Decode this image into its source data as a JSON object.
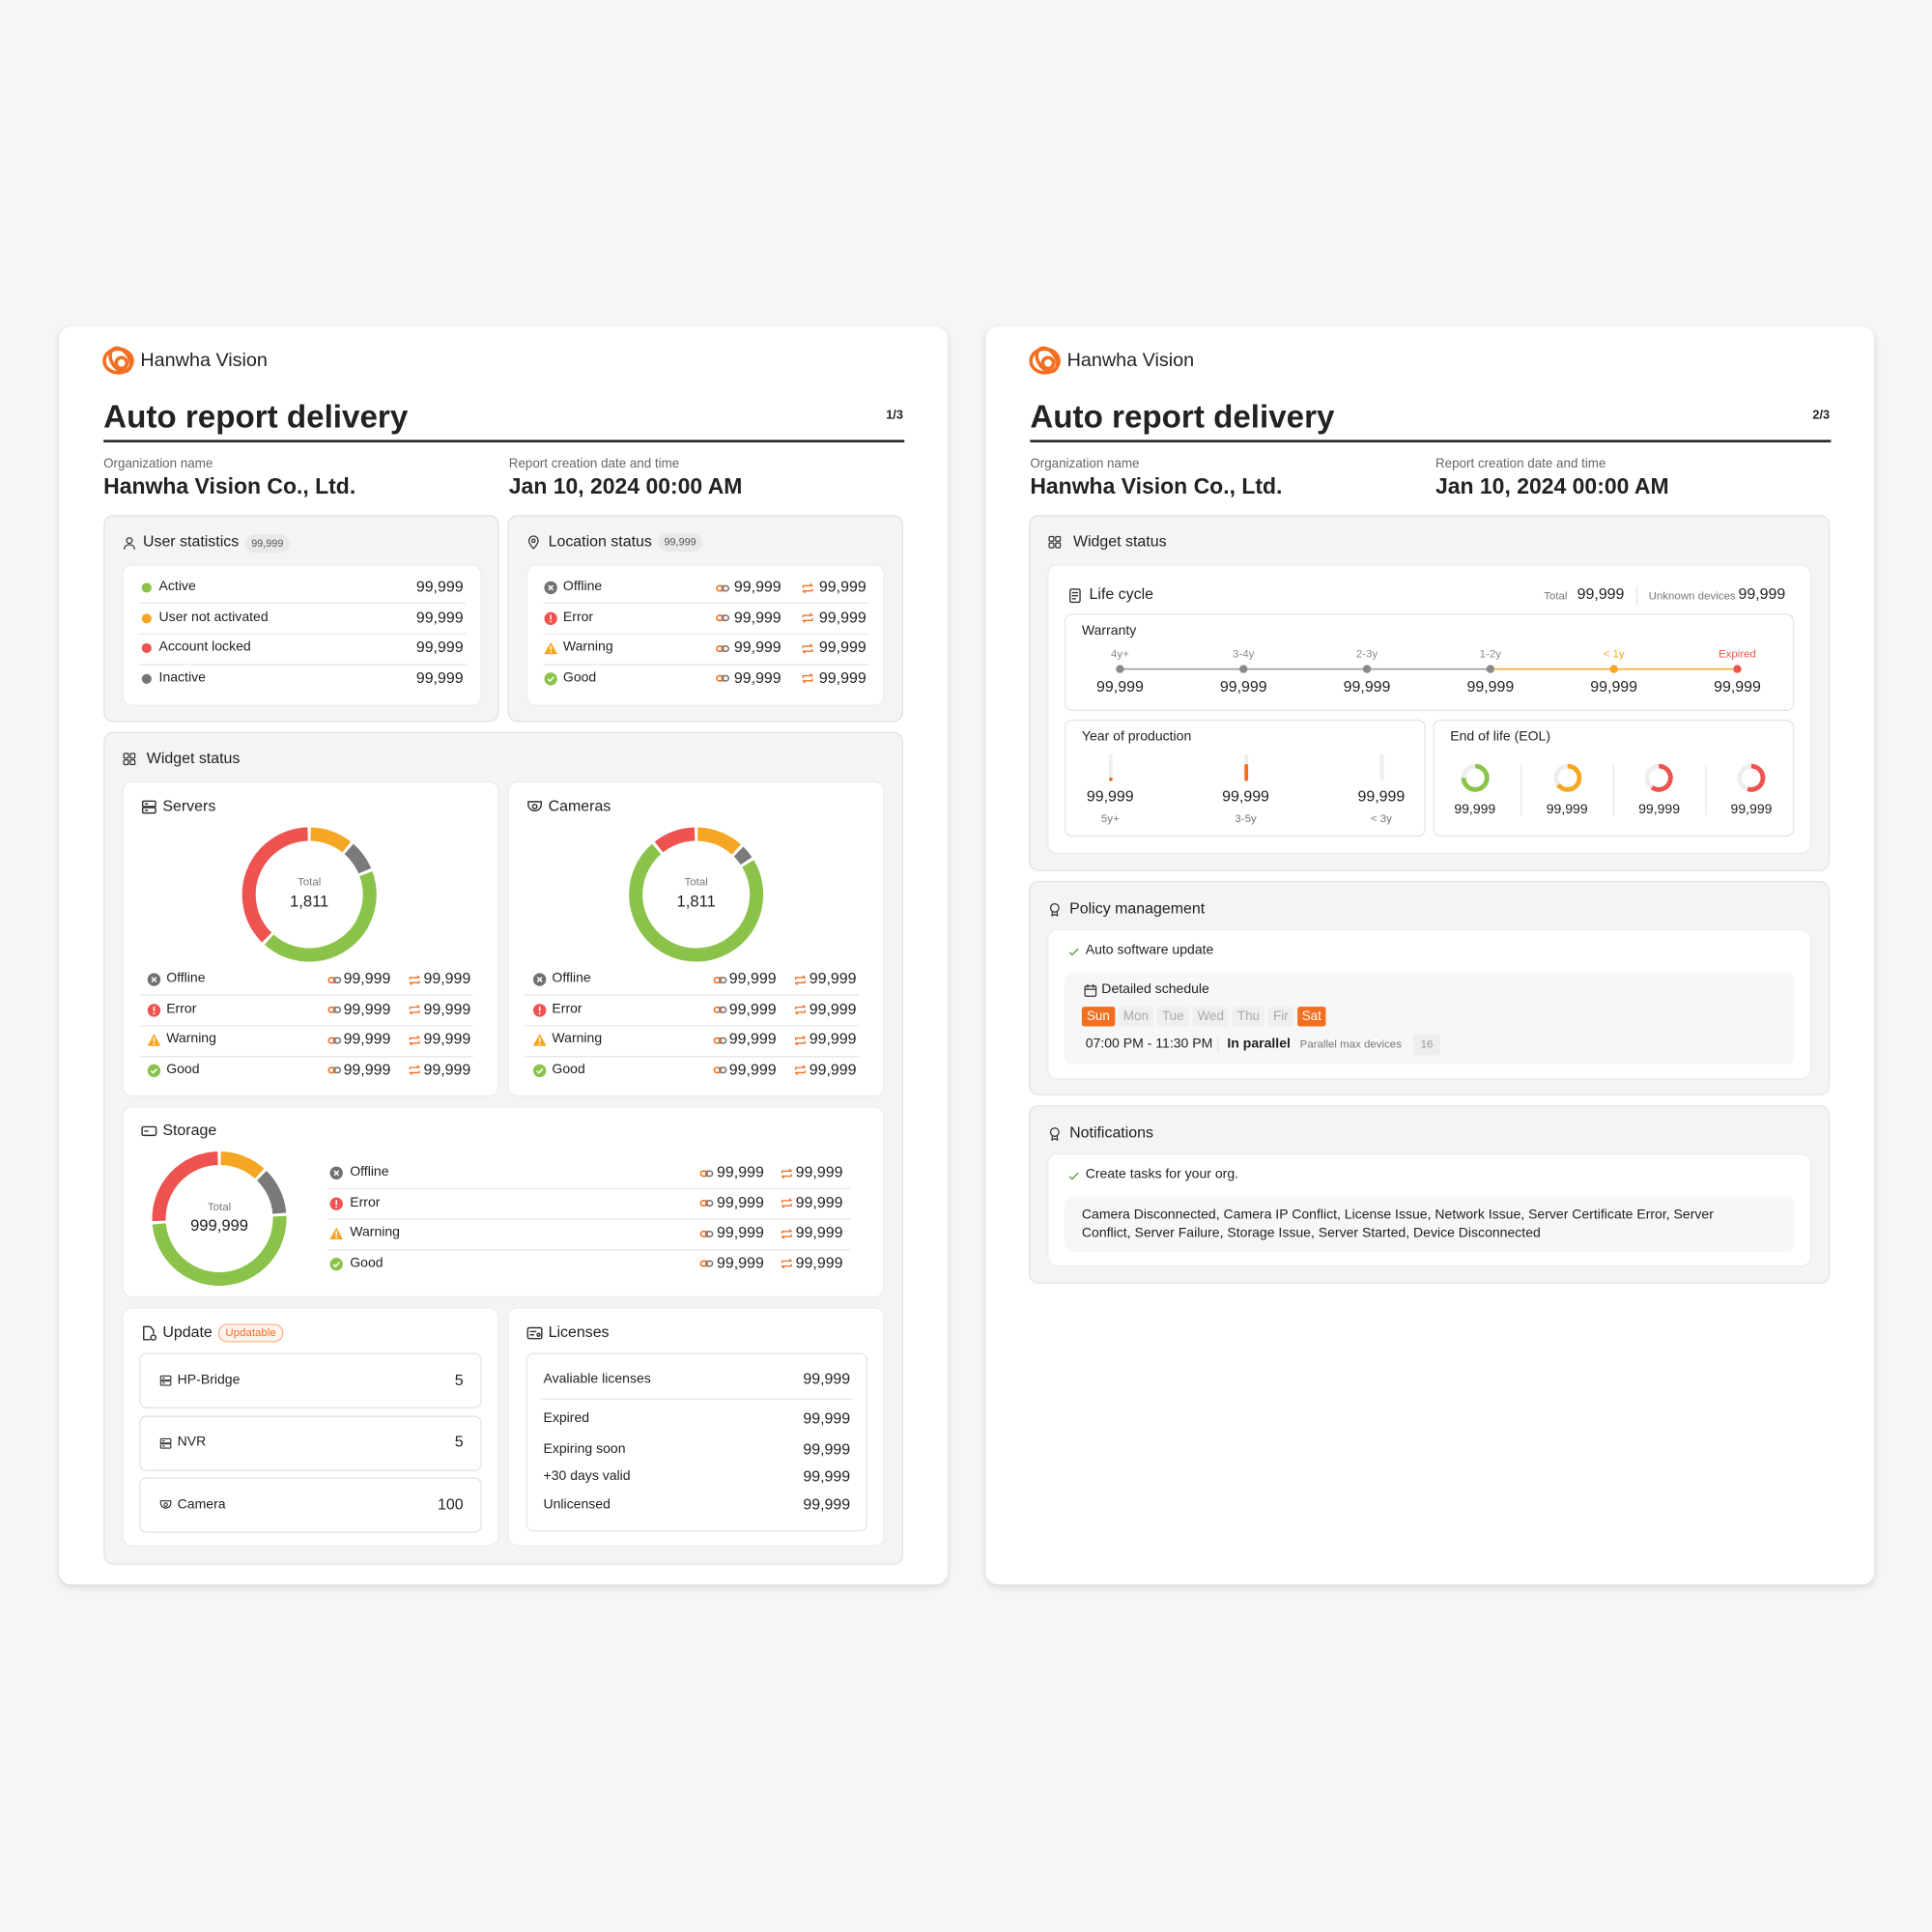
{
  "pages": [
    {
      "brand": "Hanwha Vision",
      "title": "Auto report delivery",
      "page_number": "1/3",
      "org_label": "Organization name",
      "org_name": "Hanwha Vision Co., Ltd.",
      "date_label": "Report creation date and time",
      "date": "Jan 10, 2024 00:00 AM"
    },
    {
      "brand": "Hanwha Vision",
      "title": "Auto report delivery",
      "page_number": "2/3",
      "org_label": "Organization name",
      "org_name": "Hanwha Vision Co., Ltd.",
      "date_label": "Report creation date and time",
      "date": "Jan 10, 2024 00:00 AM"
    }
  ],
  "user_statistics": {
    "title": "User statistics",
    "badge": "99,999",
    "rows": [
      {
        "label": "Active",
        "value": "99,999",
        "color": "#8bc34a"
      },
      {
        "label": "User not activated",
        "value": "99,999",
        "color": "#f5a623"
      },
      {
        "label": "Account locked",
        "value": "99,999",
        "color": "#ef5350"
      },
      {
        "label": "Inactive",
        "value": "99,999",
        "color": "#757575"
      }
    ]
  },
  "location_status": {
    "title": "Location status",
    "badge": "99,999",
    "rows": [
      {
        "label": "Offline",
        "connected": "99,999",
        "synced": "99,999"
      },
      {
        "label": "Error",
        "connected": "99,999",
        "synced": "99,999"
      },
      {
        "label": "Warning",
        "connected": "99,999",
        "synced": "99,999"
      },
      {
        "label": "Good",
        "connected": "99,999",
        "synced": "99,999"
      }
    ]
  },
  "widget_status": {
    "title": "Widget status",
    "servers": {
      "title": "Servers",
      "total_label": "Total",
      "total": "1,811",
      "donut": {
        "values": [
          11,
          8,
          43,
          38
        ],
        "colors": [
          "#f5a623",
          "#7a7a7a",
          "#8bc34a",
          "#ef5350"
        ]
      },
      "rows": [
        {
          "label": "Offline",
          "connected": "99,999",
          "synced": "99,999"
        },
        {
          "label": "Error",
          "connected": "99,999",
          "synced": "99,999"
        },
        {
          "label": "Warning",
          "connected": "99,999",
          "synced": "99,999"
        },
        {
          "label": "Good",
          "connected": "99,999",
          "synced": "99,999"
        }
      ]
    },
    "cameras": {
      "title": "Cameras",
      "total_label": "Total",
      "total": "1,811",
      "donut": {
        "values": [
          12,
          4,
          73,
          11
        ],
        "colors": [
          "#f5a623",
          "#7a7a7a",
          "#8bc34a",
          "#ef5350"
        ]
      },
      "rows": [
        {
          "label": "Offline",
          "connected": "99,999",
          "synced": "99,999"
        },
        {
          "label": "Error",
          "connected": "99,999",
          "synced": "99,999"
        },
        {
          "label": "Warning",
          "connected": "99,999",
          "synced": "99,999"
        },
        {
          "label": "Good",
          "connected": "99,999",
          "synced": "99,999"
        }
      ]
    },
    "storage": {
      "title": "Storage",
      "total_label": "Total",
      "total": "999,999",
      "donut": {
        "values": [
          12,
          12,
          50,
          26
        ],
        "colors": [
          "#f5a623",
          "#7a7a7a",
          "#8bc34a",
          "#ef5350"
        ]
      },
      "rows": [
        {
          "label": "Offline",
          "connected": "99,999",
          "synced": "99,999"
        },
        {
          "label": "Error",
          "connected": "99,999",
          "synced": "99,999"
        },
        {
          "label": "Warning",
          "connected": "99,999",
          "synced": "99,999"
        },
        {
          "label": "Good",
          "connected": "99,999",
          "synced": "99,999"
        }
      ]
    },
    "update": {
      "title": "Update",
      "badge": "Updatable",
      "items": [
        {
          "label": "HP-Bridge",
          "value": 5
        },
        {
          "label": "NVR",
          "value": 5
        },
        {
          "label": "Camera",
          "value": 100
        }
      ]
    },
    "licenses": {
      "title": "Licenses",
      "rows": [
        {
          "label": "Avaliable licenses",
          "value": "99,999"
        },
        {
          "label": "Expired",
          "value": "99,999"
        },
        {
          "label": "Expiring soon",
          "value": "99,999"
        },
        {
          "label": "+30 days valid",
          "value": "99,999"
        },
        {
          "label": "Unlicensed",
          "value": "99,999"
        }
      ]
    }
  },
  "widget_status_2": {
    "title": "Widget status",
    "life_cycle": {
      "title": "Life cycle",
      "total_label": "Total",
      "total": "99,999",
      "unknown_label": "Unknown devices",
      "unknown": "99,999",
      "warranty": {
        "title": "Warranty",
        "points": [
          {
            "label": "4y+",
            "value": "99,999",
            "color": "#8a8a8a"
          },
          {
            "label": "3-4y",
            "value": "99,999",
            "color": "#8a8a8a"
          },
          {
            "label": "2-3y",
            "value": "99,999",
            "color": "#8a8a8a"
          },
          {
            "label": "1-2y",
            "value": "99,999",
            "color": "#8a8a8a"
          },
          {
            "label": "< 1y",
            "value": "99,999",
            "color": "#f5a623"
          },
          {
            "label": "Expired",
            "value": "99,999",
            "color": "#ef5350"
          }
        ]
      },
      "production": {
        "title": "Year of production",
        "color": "#f26f21",
        "items": [
          {
            "value": "99,999",
            "label": "5y+",
            "fill": 15
          },
          {
            "value": "99,999",
            "label": "3-5y",
            "fill": 65
          },
          {
            "value": "99,999",
            "label": "< 3y",
            "fill": 0
          }
        ]
      },
      "eol": {
        "title": "End of life (EOL)",
        "items": [
          {
            "value": "99,999",
            "fill": 75,
            "color": "#8bc34a"
          },
          {
            "value": "99,999",
            "fill": 65,
            "color": "#f5a623"
          },
          {
            "value": "99,999",
            "fill": 60,
            "color": "#ef5350"
          },
          {
            "value": "99,999",
            "fill": 55,
            "color": "#ef5350"
          }
        ]
      }
    }
  },
  "policy": {
    "title": "Policy management",
    "item": "Auto software update",
    "schedule_title": "Detailed schedule",
    "days": [
      {
        "label": "Sun",
        "active": true
      },
      {
        "label": "Mon",
        "active": false
      },
      {
        "label": "Tue",
        "active": false
      },
      {
        "label": "Wed",
        "active": false
      },
      {
        "label": "Thu",
        "active": false
      },
      {
        "label": "Fir",
        "active": false
      },
      {
        "label": "Sat",
        "active": true
      }
    ],
    "time": "07:00 PM - 11:30 PM",
    "mode": "In parallel",
    "max_label": "Parallel max devices",
    "max": 16
  },
  "notifications": {
    "title": "Notifications",
    "item": "Create tasks for your org.",
    "events": "Camera Disconnected, Camera IP Conflict, License Issue, Network Issue, Server Certificate Error, Server Conflict, Server Failure, Storage Issue, Server Started, Device Disconnected"
  }
}
